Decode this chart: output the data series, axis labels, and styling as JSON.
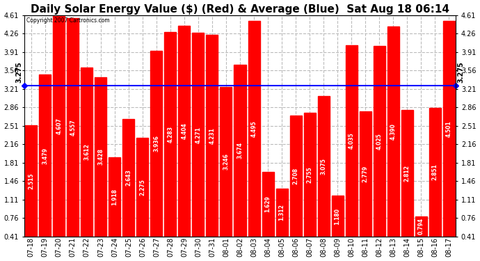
{
  "title": "Daily Solar Energy Value ($) (Red) & Average (Blue)  Sat Aug 18 06:14",
  "copyright": "Copyright 2007 Cartronics.com",
  "average": 3.275,
  "bar_color": "#ff0000",
  "avg_line_color": "#0000ff",
  "background_color": "#ffffff",
  "plot_bg_color": "#ffffff",
  "ymin": 0.41,
  "ymax": 4.61,
  "yticks": [
    0.41,
    0.76,
    1.11,
    1.46,
    1.81,
    2.16,
    2.51,
    2.86,
    3.21,
    3.56,
    3.91,
    4.26,
    4.61
  ],
  "categories": [
    "07-18",
    "07-19",
    "07-20",
    "07-21",
    "07-22",
    "07-23",
    "07-24",
    "07-25",
    "07-26",
    "07-27",
    "07-28",
    "07-29",
    "07-30",
    "07-31",
    "08-01",
    "08-02",
    "08-03",
    "08-04",
    "08-05",
    "08-06",
    "08-07",
    "08-08",
    "08-09",
    "08-10",
    "08-11",
    "08-12",
    "08-13",
    "08-14",
    "08-15",
    "08-16",
    "08-17"
  ],
  "values": [
    2.515,
    3.479,
    4.607,
    4.557,
    3.612,
    3.428,
    1.918,
    2.643,
    2.275,
    3.936,
    4.283,
    4.404,
    4.271,
    4.231,
    3.246,
    3.674,
    4.495,
    1.629,
    1.312,
    2.708,
    2.755,
    3.075,
    1.18,
    4.035,
    2.779,
    4.025,
    4.39,
    2.812,
    0.794,
    2.851,
    4.501
  ],
  "title_fontsize": 11,
  "tick_fontsize": 7,
  "value_fontsize": 5.5,
  "grid_color": "#bbbbbb",
  "grid_style": "--",
  "left_avg_label": "3.275",
  "right_avg_label": "3.275"
}
